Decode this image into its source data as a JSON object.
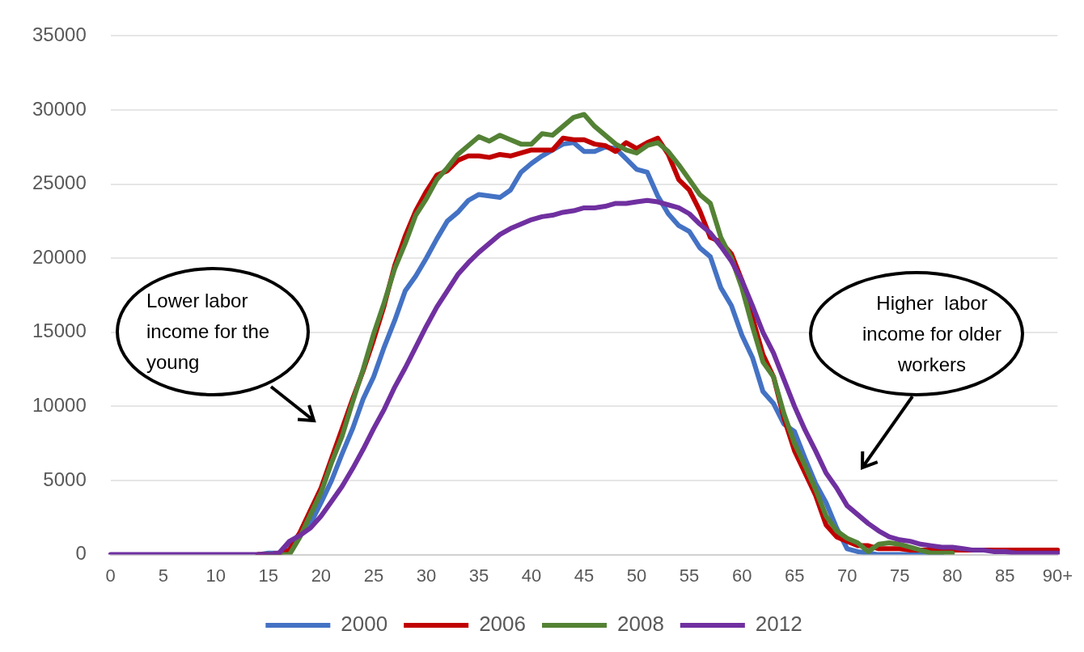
{
  "chart_data": {
    "type": "line",
    "categories": [
      "0",
      null,
      null,
      null,
      null,
      "5",
      null,
      null,
      null,
      null,
      "10",
      null,
      null,
      null,
      null,
      "15",
      null,
      null,
      null,
      null,
      "20",
      null,
      null,
      null,
      null,
      "25",
      null,
      null,
      null,
      null,
      "30",
      null,
      null,
      null,
      null,
      "35",
      null,
      null,
      null,
      null,
      "40",
      null,
      null,
      null,
      null,
      "45",
      null,
      null,
      null,
      null,
      "50",
      null,
      null,
      null,
      null,
      "55",
      null,
      null,
      null,
      null,
      "60",
      null,
      null,
      null,
      null,
      "65",
      null,
      null,
      null,
      null,
      "70",
      null,
      null,
      null,
      null,
      "75",
      null,
      null,
      null,
      null,
      "80",
      null,
      null,
      null,
      null,
      "85",
      null,
      null,
      null,
      null,
      "90+"
    ],
    "series": [
      {
        "name": "2000",
        "color": "#4472c4",
        "values": [
          null,
          null,
          null,
          null,
          null,
          null,
          null,
          null,
          null,
          null,
          null,
          null,
          null,
          null,
          0,
          100,
          100,
          700,
          1400,
          2100,
          3500,
          5000,
          6800,
          8500,
          10500,
          12000,
          14000,
          15800,
          17800,
          18800,
          20000,
          21300,
          22500,
          23100,
          23900,
          24300,
          24200,
          24100,
          24600,
          25800,
          26400,
          26900,
          27300,
          27700,
          27800,
          27200,
          27200,
          27500,
          27400,
          26700,
          26000,
          25800,
          24200,
          23000,
          22200,
          21800,
          20700,
          20100,
          18000,
          16800,
          14800,
          13300,
          11000,
          10200,
          8800,
          8300,
          6500,
          4800,
          3500,
          1800,
          400,
          200,
          100,
          0,
          0,
          0,
          0,
          0,
          0,
          0,
          null,
          null,
          null,
          null,
          null,
          null,
          null,
          null,
          null,
          null,
          null
        ]
      },
      {
        "name": "2006",
        "color": "#c00000",
        "values": [
          null,
          null,
          null,
          null,
          null,
          null,
          null,
          null,
          null,
          null,
          null,
          null,
          null,
          null,
          0,
          0,
          100,
          300,
          1500,
          3000,
          4500,
          6500,
          8500,
          10500,
          12400,
          14500,
          16800,
          19500,
          21500,
          23200,
          24500,
          25600,
          25900,
          26600,
          26900,
          26900,
          26800,
          27000,
          26900,
          27100,
          27300,
          27300,
          27300,
          28100,
          28000,
          28000,
          27700,
          27600,
          27200,
          27800,
          27400,
          27800,
          28100,
          27000,
          25300,
          24600,
          23200,
          21400,
          21100,
          20300,
          18500,
          16000,
          13500,
          12000,
          9200,
          7000,
          5500,
          4000,
          2000,
          1200,
          900,
          600,
          600,
          400,
          400,
          400,
          300,
          300,
          300,
          300,
          300,
          300,
          300,
          300,
          300,
          300,
          300,
          300,
          300,
          300,
          300
        ]
      },
      {
        "name": "2008",
        "color": "#548235",
        "values": [
          null,
          null,
          null,
          null,
          null,
          null,
          null,
          null,
          null,
          null,
          null,
          null,
          null,
          null,
          null,
          0,
          0,
          0,
          1200,
          2700,
          4200,
          6200,
          8000,
          10300,
          12500,
          14900,
          17000,
          19300,
          21000,
          22900,
          24000,
          25300,
          26100,
          27000,
          27600,
          28200,
          27900,
          28300,
          28000,
          27700,
          27700,
          28400,
          28300,
          28900,
          29500,
          29700,
          28900,
          28300,
          27700,
          27300,
          27100,
          27600,
          27800,
          27200,
          26300,
          25300,
          24300,
          23700,
          21400,
          20000,
          18000,
          15400,
          13000,
          12000,
          9500,
          7500,
          6000,
          4400,
          2600,
          1600,
          1100,
          800,
          200,
          700,
          800,
          700,
          500,
          300,
          100,
          100,
          100,
          null,
          null,
          null,
          null,
          null,
          null,
          null,
          null,
          null,
          null
        ]
      },
      {
        "name": "2012",
        "color": "#7030a0",
        "values": [
          0,
          0,
          0,
          0,
          0,
          0,
          0,
          0,
          0,
          0,
          0,
          0,
          0,
          0,
          0,
          0,
          100,
          900,
          1300,
          1800,
          2600,
          3600,
          4600,
          5800,
          7100,
          8500,
          9800,
          11300,
          12600,
          14000,
          15400,
          16700,
          17800,
          18900,
          19700,
          20400,
          21000,
          21600,
          22000,
          22300,
          22600,
          22800,
          22900,
          23100,
          23200,
          23400,
          23400,
          23500,
          23700,
          23700,
          23800,
          23900,
          23800,
          23600,
          23400,
          23000,
          22300,
          21700,
          20800,
          19800,
          18500,
          16800,
          15000,
          13600,
          11800,
          10000,
          8400,
          7000,
          5500,
          4500,
          3300,
          2700,
          2100,
          1600,
          1200,
          1000,
          900,
          700,
          600,
          500,
          500,
          400,
          300,
          300,
          200,
          200,
          100,
          100,
          100,
          100,
          100
        ]
      }
    ],
    "ylim": [
      0,
      35000
    ],
    "yticks": [
      0,
      5000,
      10000,
      15000,
      20000,
      25000,
      30000,
      35000
    ],
    "grid": "y",
    "legend": "bottom",
    "marker": "none",
    "line_style": "solid",
    "annotations": [
      "Lower labor income for the young",
      "Higher  labor income for older workers"
    ]
  }
}
